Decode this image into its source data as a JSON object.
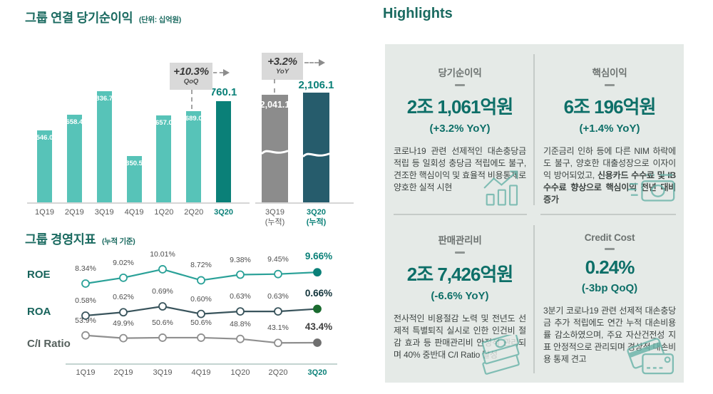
{
  "highlights": {
    "title": "Highlights",
    "cards": [
      {
        "title": "당기순이익",
        "value": "2조 1,061억원",
        "delta": "(+3.2% YoY)",
        "body": "코로나19 관련 선제적인 대손충당금 적립 등 일회성 충당금 적립에도 불구, 견조한 핵심이익 및 효율적 비용통제로 양호한 실적 시현",
        "body_bold": "",
        "icon": "growth-chart"
      },
      {
        "title": "핵심이익",
        "value": "6조 196억원",
        "delta": "(+1.4% YoY)",
        "body": "기준금리 인하 등에 다른 NIM 하락에도 불구, 양호한 대출성장으로 이자이익 방어되었고, ",
        "body_bold": "신용카드 수수료 및 IB 수수료 향상으로 핵심이익 전년 대비 증가",
        "icon": "banknote"
      },
      {
        "title": "판매관리비",
        "value": "2조 7,426억원",
        "delta": "(-6.6% YoY)",
        "body": "전사적인 비용절감 노력 및 전년도 선제적 특별퇴직 실시로 인한 인건비 절감 효과 등 판매관리비 안정적 관리되며 40% 중반대 C/I Ratio 달성",
        "body_bold": "",
        "icon": "money-stack"
      },
      {
        "title": "Credit Cost",
        "value": "0.24%",
        "delta": "(-3bp QoQ)",
        "body": "3분기 코로나19 관련 선제적 대손충당금 추가 적립에도 연간 누적 대손비용률 감소하였으며, 주요 자산건전성 지표 안정적으로 관리되며 경상적 대손비용 통제 견고",
        "body_bold": "",
        "icon": "credit-cards"
      }
    ]
  },
  "chart_data": [
    {
      "type": "bar",
      "title": "그룹 연결 당기순이익",
      "unit": "(단위: 십억원)",
      "categories": [
        "1Q19",
        "2Q19",
        "3Q19",
        "4Q19",
        "1Q20",
        "2Q20",
        "3Q20"
      ],
      "values": [
        546.0,
        658.4,
        836.7,
        350.5,
        657.0,
        689.0,
        760.1
      ],
      "highlight_last": true,
      "annotation": {
        "text": "+10.3%",
        "label": "QoQ"
      }
    },
    {
      "type": "bar",
      "title": "그룹 연결 당기순이익 누적",
      "categories": [
        "3Q19\n(누적)",
        "3Q20\n(누적)"
      ],
      "values": [
        2041.1,
        2106.1
      ],
      "axis_break": true,
      "highlight_last": true,
      "annotation": {
        "text": "+3.2%",
        "label": "YoY"
      }
    },
    {
      "type": "line",
      "title": "그룹 경영지표",
      "subtitle": "(누적 기준)",
      "categories": [
        "1Q19",
        "2Q19",
        "3Q19",
        "4Q19",
        "1Q20",
        "2Q20",
        "3Q20"
      ],
      "series": [
        {
          "name": "ROE",
          "decimals": 2,
          "values": [
            8.34,
            9.02,
            10.01,
            8.72,
            9.38,
            9.45,
            9.66
          ]
        },
        {
          "name": "ROA",
          "decimals": 2,
          "values": [
            0.58,
            0.62,
            0.69,
            0.6,
            0.63,
            0.63,
            0.66
          ]
        },
        {
          "name": "C/I Ratio",
          "decimals": 1,
          "values": [
            53.9,
            49.9,
            50.6,
            50.6,
            48.8,
            43.1,
            43.4
          ]
        }
      ]
    }
  ],
  "colors": {
    "accent_teal_dark": "#1a6a60",
    "bar_light": "#57c3b8",
    "bar_highlight": "#0a8078",
    "bar_gray": "#8c8c8c",
    "bar_cumulative_dark": "#265c6c",
    "annotation_bg": "#d9d9d9",
    "panel_bg": "#e5eae7",
    "value_teal": "#0d6f68",
    "line_roe": "#2aa198",
    "line_roa": "#39545c",
    "line_ci": "#8f8f8f",
    "dot_last": [
      "#0a8078",
      "#1a6b2f",
      "#6f6f6f"
    ],
    "label_last": [
      "#0a8078",
      "#12343b",
      "#3f3f3f"
    ]
  }
}
